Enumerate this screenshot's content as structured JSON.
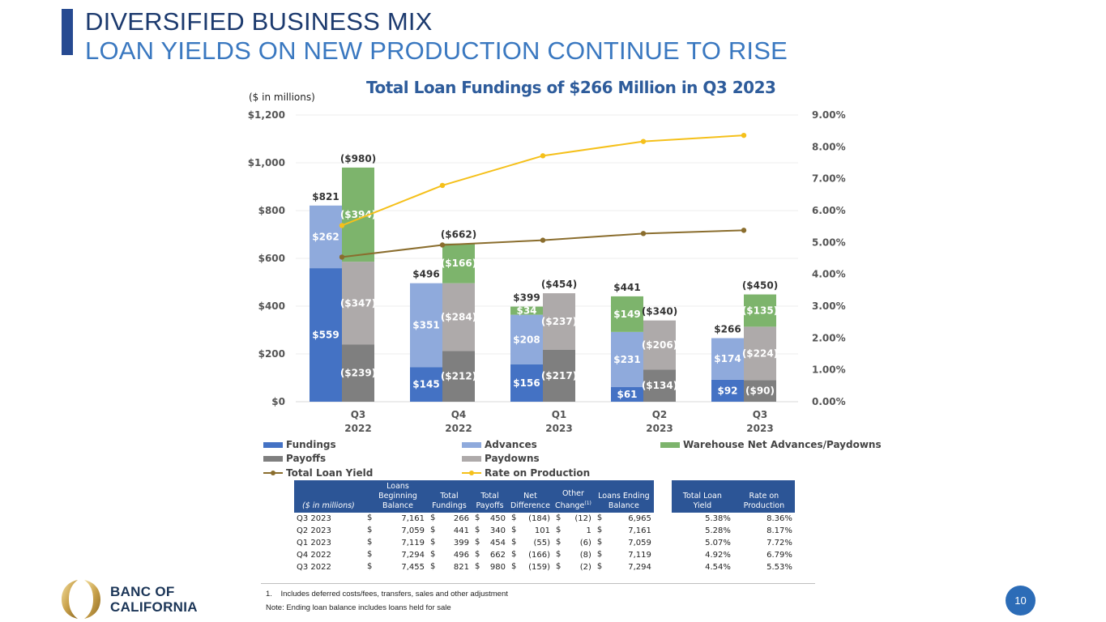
{
  "header": {
    "title_line1": "DIVERSIFIED BUSINESS MIX",
    "title_line2": "LOAN YIELDS ON NEW PRODUCTION CONTINUE TO RISE"
  },
  "chart_data": {
    "type": "bar",
    "subtype": "stacked-bar-with-lines",
    "title": "Total Loan Fundings of $266 Million in Q3 2023",
    "unit_label": "($ in millions)",
    "categories": [
      [
        "Q3",
        "2022"
      ],
      [
        "Q4",
        "2022"
      ],
      [
        "Q1",
        "2023"
      ],
      [
        "Q2",
        "2023"
      ],
      [
        "Q3",
        "2023"
      ]
    ],
    "y_left": {
      "ylim": [
        0,
        1200
      ],
      "ticks": [
        0,
        200,
        400,
        600,
        800,
        1000,
        1200
      ],
      "tick_labels": [
        "$0",
        "$200",
        "$400",
        "$600",
        "$800",
        "$1,000",
        "$1,200"
      ]
    },
    "y_right": {
      "ylim": [
        0,
        9
      ],
      "ticks": [
        0,
        1,
        2,
        3,
        4,
        5,
        6,
        7,
        8,
        9
      ],
      "tick_labels": [
        "0.00%",
        "1.00%",
        "2.00%",
        "3.00%",
        "4.00%",
        "5.00%",
        "6.00%",
        "7.00%",
        "8.00%",
        "9.00%"
      ]
    },
    "grid": true,
    "stacks": [
      {
        "name": "fundings-stack",
        "series": [
          {
            "name": "Fundings",
            "color": "#4472c4",
            "values": [
              559,
              145,
              156,
              61,
              92
            ],
            "labels": [
              "$559",
              "$145",
              "$156",
              "$61",
              "$92"
            ]
          },
          {
            "name": "Advances",
            "color": "#8faadc",
            "values": [
              262,
              351,
              208,
              231,
              174
            ],
            "labels": [
              "$262",
              "$351",
              "$208",
              "$231",
              "$174"
            ]
          },
          {
            "name": "Warehouse Net Advances/Paydowns",
            "color": "#7db46c",
            "values": [
              0,
              0,
              34,
              149,
              0
            ],
            "labels": [
              "",
              "",
              "$34",
              "$149",
              ""
            ]
          }
        ],
        "totals": [
          "$821",
          "$496",
          "$399",
          "$441",
          "$266"
        ]
      },
      {
        "name": "payoffs-stack",
        "series": [
          {
            "name": "Payoffs",
            "color": "#7f7f7f",
            "values": [
              239,
              212,
              217,
              134,
              90
            ],
            "labels": [
              "($239)",
              "($212)",
              "($217)",
              "($134)",
              "($90)"
            ]
          },
          {
            "name": "Paydowns",
            "color": "#aeaaaa",
            "values": [
              347,
              284,
              237,
              206,
              224
            ],
            "labels": [
              "($347)",
              "($284)",
              "($237)",
              "($206)",
              "($224)"
            ]
          },
          {
            "name": "Warehouse Net Advances/Paydowns",
            "color": "#7db46c",
            "values": [
              394,
              166,
              0,
              0,
              135
            ],
            "labels": [
              "($394)",
              "($166)",
              "",
              "",
              "($135)"
            ]
          }
        ],
        "totals": [
          "($980)",
          "($662)",
          "($454)",
          "($340)",
          "($450)"
        ]
      }
    ],
    "lines": [
      {
        "name": "Total Loan Yield",
        "color": "#8a6d2d",
        "axis": "right",
        "values": [
          4.54,
          4.92,
          5.07,
          5.28,
          5.38
        ]
      },
      {
        "name": "Rate on Production",
        "color": "#f5c01a",
        "axis": "right",
        "values": [
          5.53,
          6.79,
          7.72,
          8.17,
          8.36
        ]
      }
    ],
    "legend": [
      {
        "label": "Fundings",
        "kind": "box",
        "color": "#4472c4"
      },
      {
        "label": "Advances",
        "kind": "box",
        "color": "#8faadc"
      },
      {
        "label": "Warehouse Net Advances/Paydowns",
        "kind": "box",
        "color": "#7db46c"
      },
      {
        "label": "Payoffs",
        "kind": "box",
        "color": "#7f7f7f"
      },
      {
        "label": "Paydowns",
        "kind": "box",
        "color": "#aeaaaa"
      },
      {
        "label": "Total Loan Yield",
        "kind": "line",
        "color": "#8a6d2d"
      },
      {
        "label": "Rate on Production",
        "kind": "line",
        "color": "#f5c01a"
      }
    ],
    "legend_position": "bottom"
  },
  "table": {
    "headers": {
      "unit": "($ in millions)",
      "beginning": [
        "Loans",
        "Beginning",
        "Balance"
      ],
      "fundings": [
        "Total",
        "Fundings"
      ],
      "payoffs": [
        "Total",
        "Payoffs"
      ],
      "net": [
        "Net",
        "Difference"
      ],
      "other": [
        "Other",
        "Change"
      ],
      "other_note": "(1)",
      "ending": [
        "Loans Ending",
        "Balance"
      ],
      "yield": [
        "Total Loan",
        "Yield"
      ],
      "rate": [
        "Rate on",
        "Production"
      ]
    },
    "rows": [
      {
        "period": "Q3 2023",
        "beginning": "7,161",
        "fundings": "266",
        "payoffs": "450",
        "net": "(184)",
        "other": "(12)",
        "ending": "6,965",
        "yield": "5.38%",
        "rate": "8.36%"
      },
      {
        "period": "Q2 2023",
        "beginning": "7,059",
        "fundings": "441",
        "payoffs": "340",
        "net": "101",
        "other": "1",
        "ending": "7,161",
        "yield": "5.28%",
        "rate": "8.17%"
      },
      {
        "period": "Q1 2023",
        "beginning": "7,119",
        "fundings": "399",
        "payoffs": "454",
        "net": "(55)",
        "other": "(6)",
        "ending": "7,059",
        "yield": "5.07%",
        "rate": "7.72%"
      },
      {
        "period": "Q4 2022",
        "beginning": "7,294",
        "fundings": "496",
        "payoffs": "662",
        "net": "(166)",
        "other": "(8)",
        "ending": "7,119",
        "yield": "4.92%",
        "rate": "6.79%"
      },
      {
        "period": "Q3 2022",
        "beginning": "7,455",
        "fundings": "821",
        "payoffs": "980",
        "net": "(159)",
        "other": "(2)",
        "ending": "7,294",
        "yield": "4.54%",
        "rate": "5.53%"
      }
    ],
    "currency_symbol": "$"
  },
  "footnotes": {
    "note1": "1.    Includes deferred costs/fees, transfers, sales and other adjustment",
    "note2": "Note: Ending loan balance includes loans held for sale"
  },
  "brand": {
    "logo_line1": "BANC OF",
    "logo_line2": "CALIFORNIA"
  },
  "page_number": "10"
}
